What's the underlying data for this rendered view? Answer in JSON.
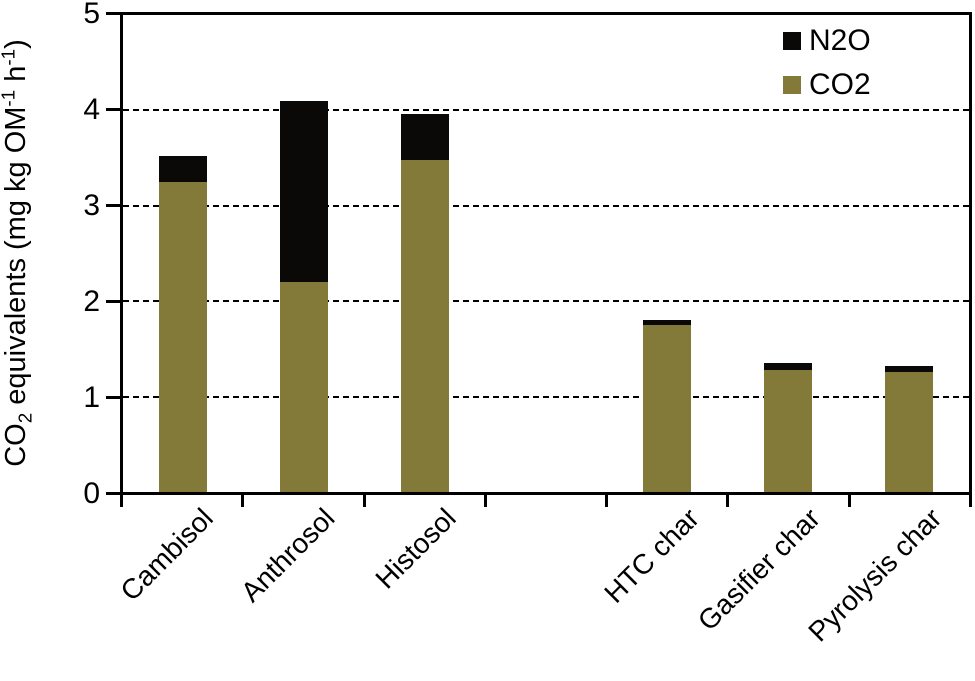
{
  "chart_data": {
    "type": "bar",
    "stacked": true,
    "title": "",
    "xlabel": "",
    "ylabel": "CO2 equivalents (mg kg OM-1 h-1)",
    "ylabel_parts": {
      "p1": "CO",
      "sub1": "2",
      "p2": " equivalents (mg kg OM",
      "sup1": "-1",
      "p3": " h",
      "sup2": "-1",
      "p4": ")"
    },
    "ylim": [
      0,
      5
    ],
    "yticks": [
      0,
      1,
      2,
      3,
      4,
      5
    ],
    "gridlines_at": [
      1,
      2,
      3,
      4
    ],
    "grid_style": "horizontal dashed black",
    "categories": [
      "Cambisol",
      "Anthrosol",
      "Histosol",
      "",
      "HTC char",
      "Gasifier char",
      "Pyrolysis char"
    ],
    "series": [
      {
        "name": "CO2",
        "color": "#837a3a",
        "values": [
          3.25,
          2.2,
          3.48,
          null,
          1.75,
          1.28,
          1.26
        ]
      },
      {
        "name": "N2O",
        "color": "#0a0908",
        "values": [
          0.27,
          1.9,
          0.48,
          null,
          0.05,
          0.07,
          0.06
        ]
      }
    ],
    "totals": [
      3.52,
      4.1,
      3.96,
      null,
      1.8,
      1.35,
      1.32
    ],
    "legend": {
      "position": "top-right-inside",
      "entries": [
        {
          "label": "N2O",
          "color": "#0a0908"
        },
        {
          "label": "CO2",
          "color": "#837a3a"
        }
      ]
    },
    "axis_color": "#000000",
    "background_color": "#ffffff"
  }
}
